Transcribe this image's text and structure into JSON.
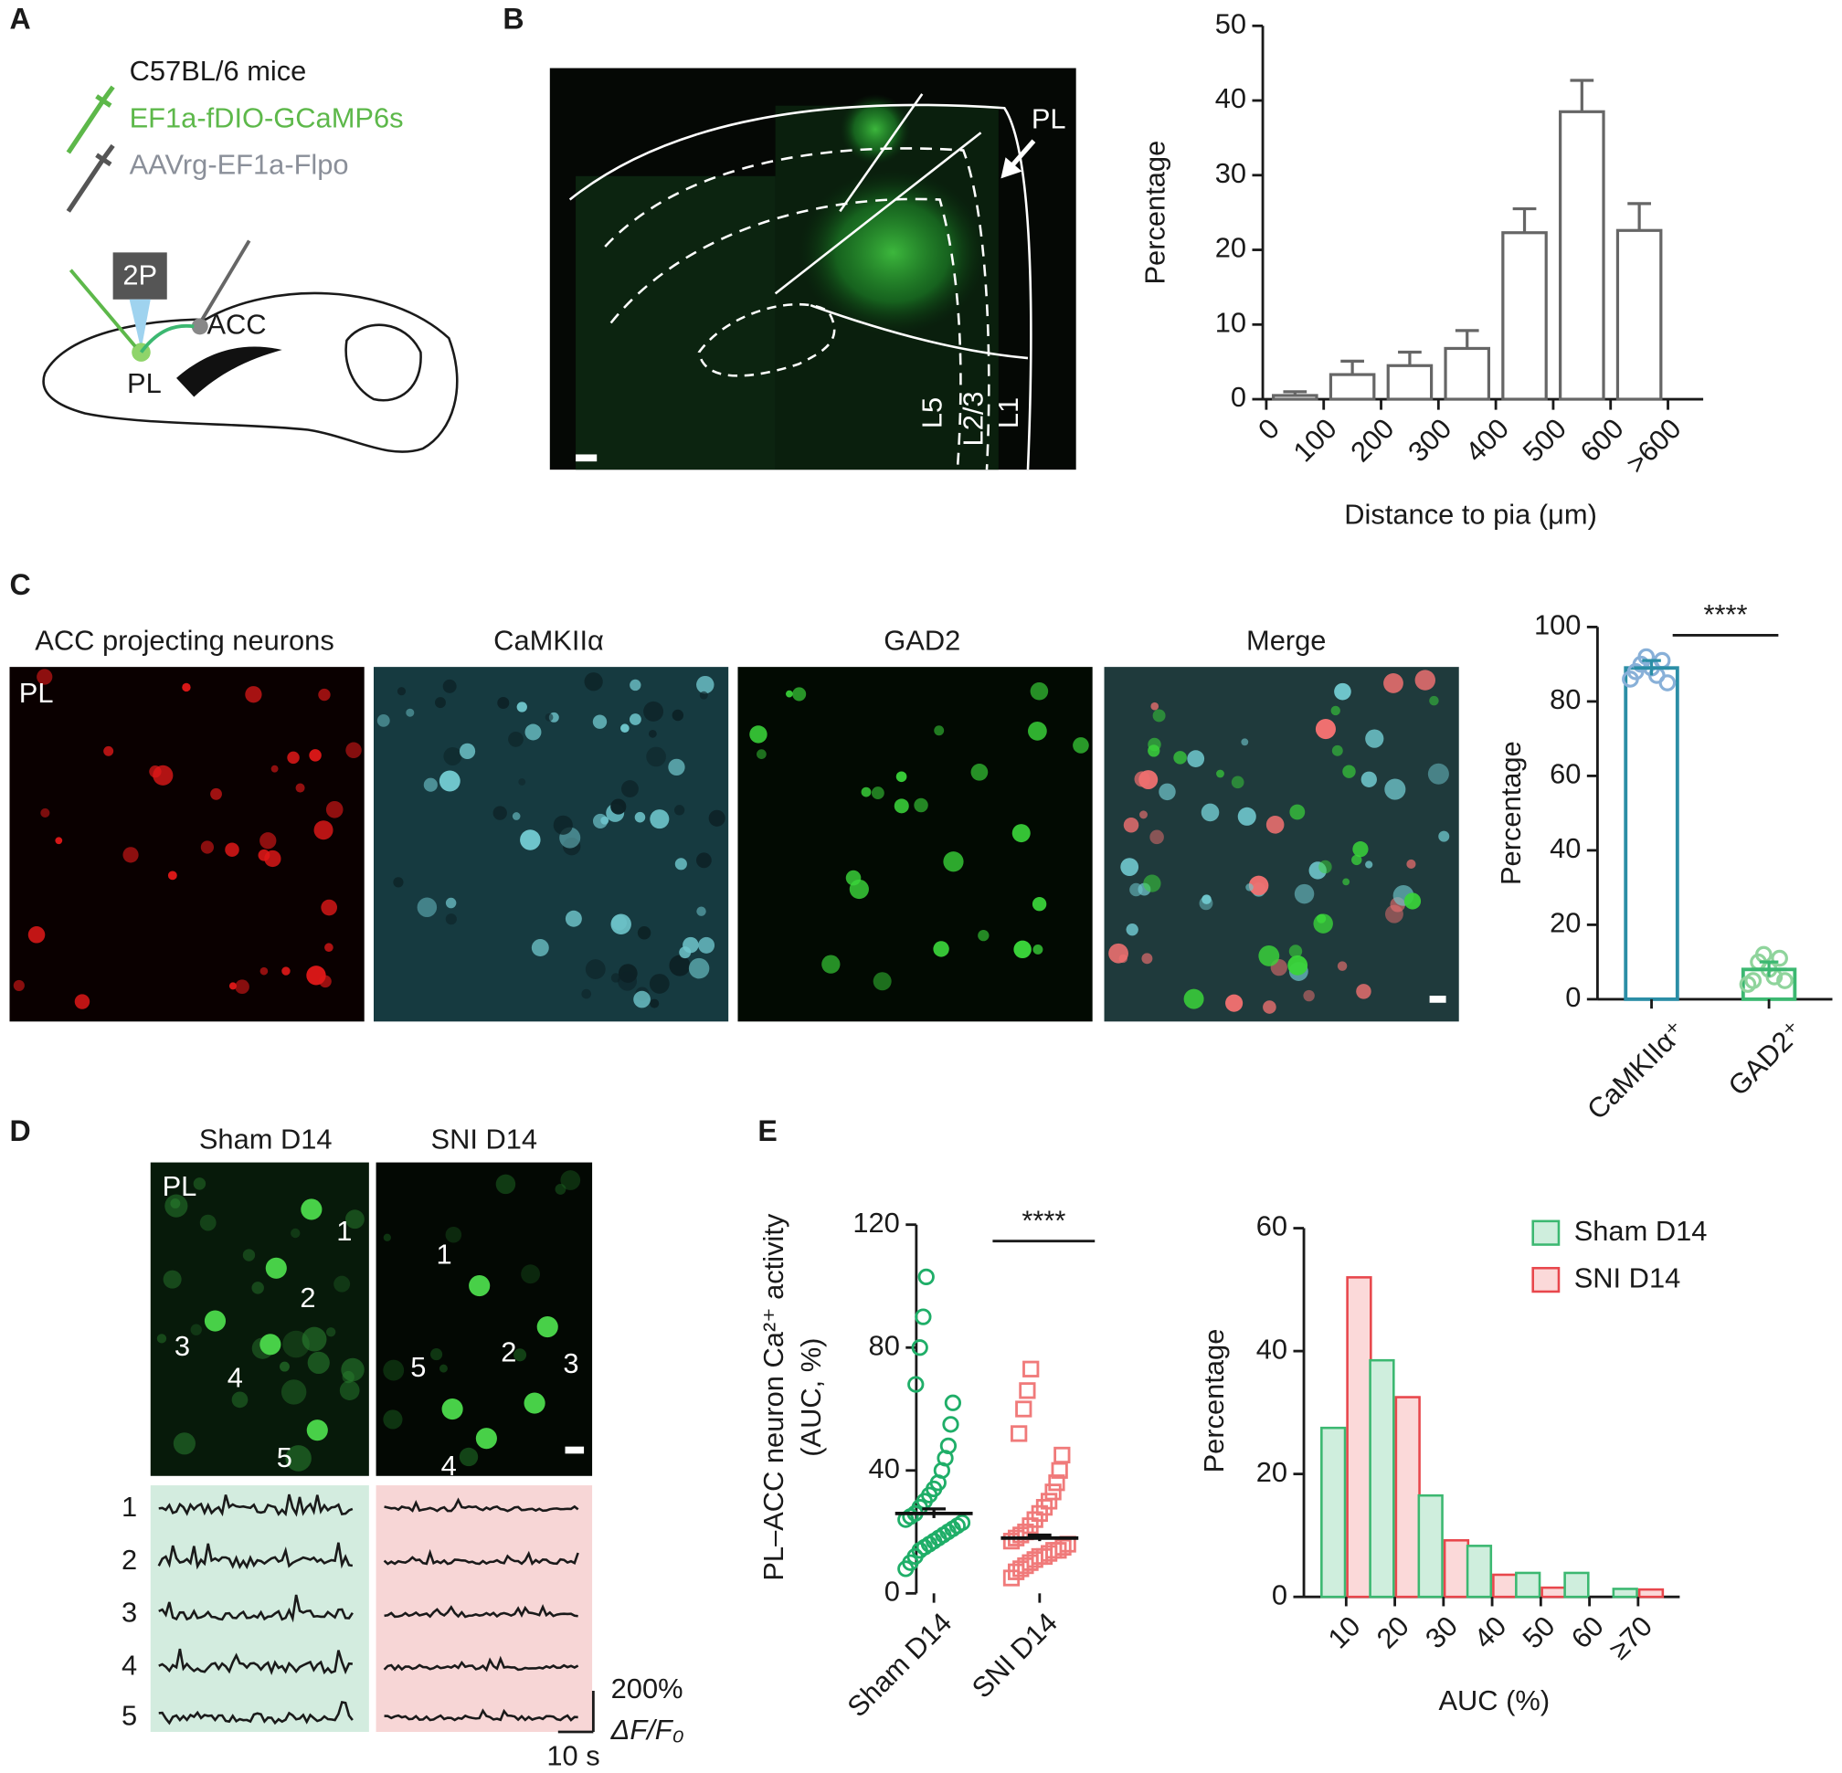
{
  "panels": {
    "a": "A",
    "b": "B",
    "c": "C",
    "d": "D",
    "e": "E"
  },
  "panel_a": {
    "mouse": "C57BL/6 mice",
    "virus_1": "EF1a-fDIO-GCaMP6s",
    "virus_2": "AAVrg-EF1a-Flpo",
    "objective": "2P",
    "target": "ACC",
    "source": "PL"
  },
  "panel_b": {
    "region": "PL",
    "layers": [
      "L5",
      "L2/3",
      "L1"
    ]
  },
  "panel_c": {
    "image_titles": [
      "ACC projecting neurons",
      "CaMKIIα",
      "GAD2",
      "Merge"
    ],
    "region": "PL"
  },
  "panel_d": {
    "image_titles": [
      "Sham D14",
      "SNI D14"
    ],
    "region": "PL",
    "sham_cells": [
      "1",
      "2",
      "3",
      "4",
      "5"
    ],
    "sni_cells": [
      "1",
      "2",
      "3",
      "4",
      "5"
    ],
    "trace_labels": [
      "1",
      "2",
      "3",
      "4",
      "5"
    ],
    "scale_amplitude": "200%",
    "scale_unit": "ΔF/F₀",
    "scale_time": "10 s"
  },
  "chart_data": [
    {
      "type": "histogram",
      "bins": [
        0,
        100,
        200,
        300,
        400,
        500,
        600,
        700
      ],
      "values": [
        0.5,
        3.3,
        4.5,
        6.8,
        22.3,
        38.5,
        22.6
      ],
      "errors": [
        0.5,
        1.8,
        1.8,
        2.4,
        3.2,
        4.2,
        3.6
      ],
      "color": "#666666",
      "xlim": [
        0,
        700
      ],
      "xticks": [
        0,
        100,
        200,
        300,
        400,
        500,
        600,
        {
          "value": 700,
          "label": ">600"
        }
      ],
      "ylim": [
        0,
        50
      ],
      "yticks": [
        0,
        10,
        20,
        30,
        40,
        50
      ],
      "xlabel": "Distance to pia (μm)",
      "ylabel": "Percentage"
    },
    {
      "type": "bar",
      "categories": [
        "CaMKIIα⁺",
        "GAD2⁺"
      ],
      "values": [
        89,
        8
      ],
      "errors": [
        2,
        2
      ],
      "points": [
        [
          86,
          88,
          90,
          92,
          89,
          87,
          91,
          85
        ],
        [
          4,
          5,
          10,
          12,
          8,
          6,
          11,
          5
        ]
      ],
      "colors": [
        "#2b8ea6",
        "#3cb871"
      ],
      "point_colors": [
        "#88b0d8",
        "#8fd49c"
      ],
      "ylim": [
        0,
        100
      ],
      "yticks": [
        0,
        20,
        40,
        60,
        80,
        100
      ],
      "ylabel": "Percentage",
      "significance": "****"
    },
    {
      "type": "scatter",
      "series": [
        {
          "name": "Sham D14",
          "color": "#1fae68",
          "marker": "circle",
          "mean": 26,
          "sem": 1.5,
          "values": [
            8,
            10,
            12,
            14,
            15,
            16,
            17,
            18,
            19,
            20,
            21,
            22,
            23,
            24,
            25,
            26,
            28,
            30,
            32,
            34,
            36,
            40,
            44,
            48,
            55,
            62,
            68,
            80,
            90,
            103
          ]
        },
        {
          "name": "SNI D14",
          "color": "#f07a7a",
          "marker": "square",
          "mean": 18,
          "sem": 1,
          "values": [
            5,
            7,
            8,
            9,
            10,
            11,
            12,
            12,
            13,
            14,
            14,
            15,
            16,
            17,
            18,
            19,
            20,
            22,
            24,
            26,
            28,
            30,
            33,
            36,
            40,
            45,
            52,
            60,
            66,
            73
          ]
        }
      ],
      "ylim": [
        0,
        120
      ],
      "yticks": [
        0,
        40,
        80,
        120
      ],
      "ylabel": [
        "PL–ACC neuron Ca²⁺ activity",
        "(AUC, %)"
      ],
      "significance": "****"
    },
    {
      "type": "bar",
      "categories": [
        "10",
        "20",
        "30",
        "40",
        "50",
        "60",
        "≥70"
      ],
      "series": [
        {
          "name": "Sham D14",
          "color": "#3cb871",
          "fill": "#cfeedd",
          "values": [
            27.5,
            38.5,
            16.5,
            8.3,
            3.9,
            3.9,
            1.3
          ]
        },
        {
          "name": "SNI D14",
          "color": "#e8474c",
          "fill": "#fbd9d9",
          "values": [
            52,
            32.5,
            9.2,
            3.6,
            1.5,
            0,
            1.2
          ]
        }
      ],
      "ylim": [
        0,
        60
      ],
      "yticks": [
        0,
        20,
        40,
        60
      ],
      "xlabel": "AUC (%)",
      "ylabel": "Percentage",
      "legend": "top-right"
    }
  ]
}
